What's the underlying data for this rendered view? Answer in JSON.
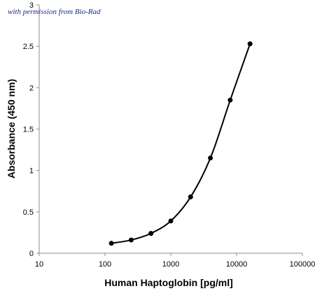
{
  "credit": "with permission from Bio-Rad",
  "chart_data": {
    "type": "scatter",
    "title": "",
    "xlabel": "Human Haptoglobin [pg/ml]",
    "ylabel": "Absorbance (450 nm)",
    "x_scale": "log",
    "xlim": [
      10,
      100000
    ],
    "ylim": [
      0,
      3
    ],
    "x_ticks": [
      "10",
      "100",
      "1000",
      "10000",
      "100000"
    ],
    "y_ticks": [
      "0",
      "0.5",
      "1",
      "1.5",
      "2",
      "2.5",
      "3"
    ],
    "grid": false,
    "legend": "none",
    "series": [
      {
        "x": [
          125,
          250,
          500,
          1000,
          2000,
          4000,
          8000,
          16000
        ],
        "y": [
          0.12,
          0.16,
          0.24,
          0.39,
          0.68,
          1.15,
          1.85,
          2.53
        ],
        "connected": "smooth",
        "color": "#000000"
      }
    ]
  }
}
